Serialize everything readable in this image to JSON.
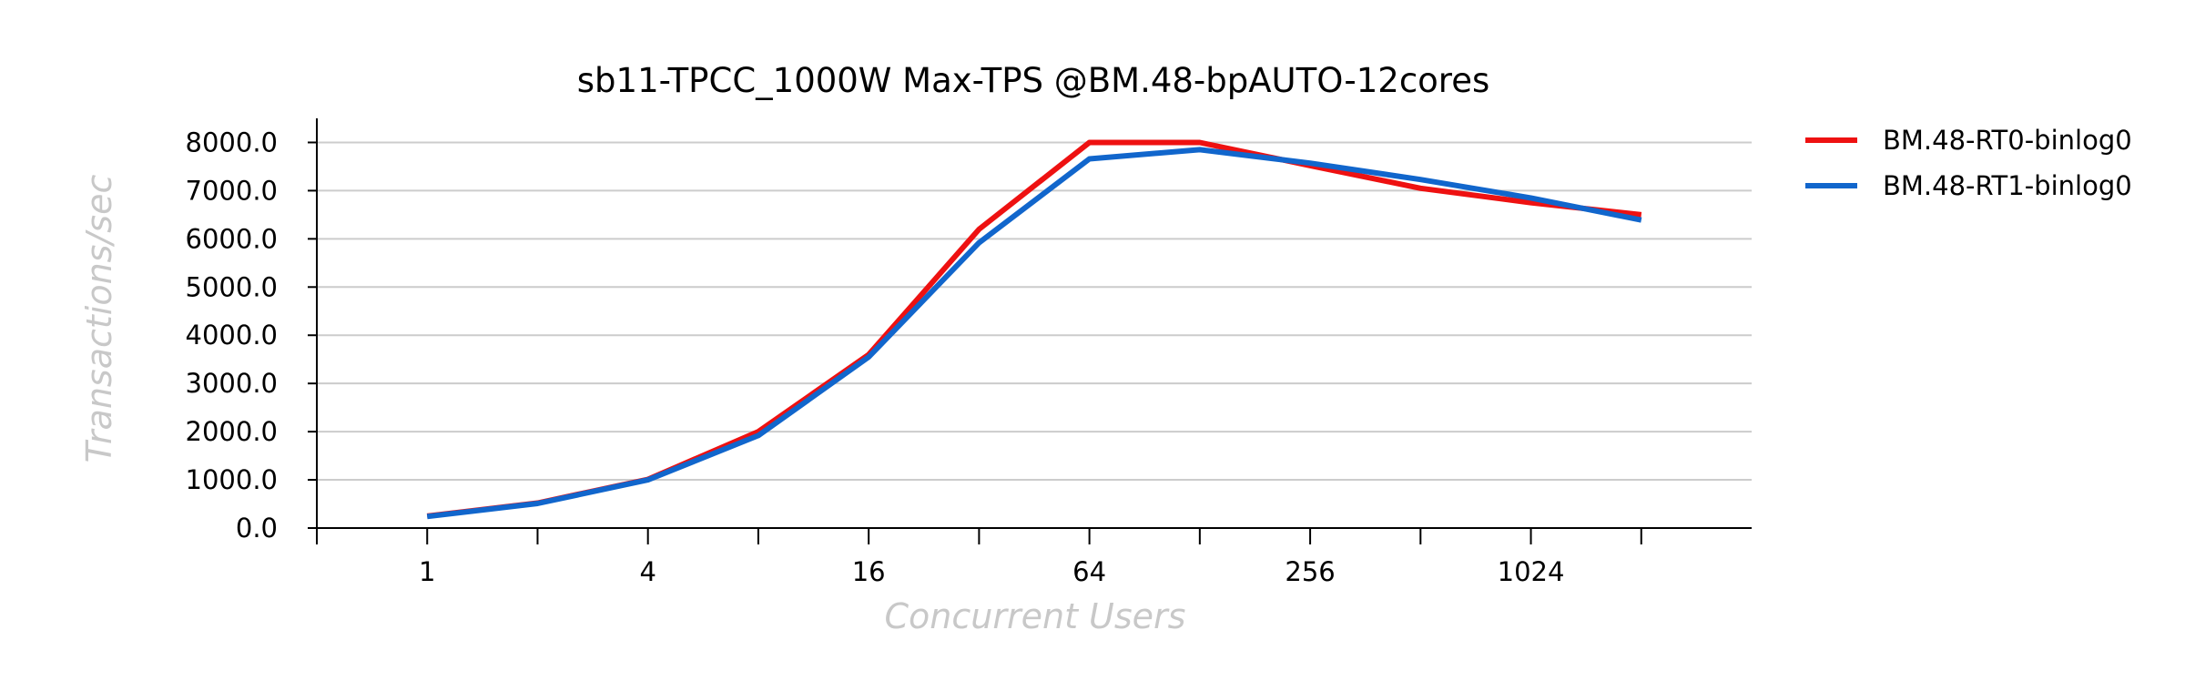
{
  "chart_data": {
    "type": "line",
    "title": "sb11-TPCC_1000W Max-TPS @BM.48-bpAUTO-12cores",
    "xlabel": "Concurrent Users",
    "ylabel": "Transactions/sec",
    "x_scale": "log2",
    "x": [
      1,
      2,
      4,
      8,
      16,
      32,
      64,
      128,
      256,
      512,
      1024,
      2048
    ],
    "xlim": [
      0.5,
      4096
    ],
    "x_ticks": [
      1,
      2,
      4,
      8,
      16,
      32,
      64,
      128,
      256,
      512,
      1024,
      2048
    ],
    "x_tick_labels": [
      "1",
      "",
      "4",
      "",
      "16",
      "",
      "64",
      "",
      "256",
      "",
      "1024",
      ""
    ],
    "ylim": [
      0,
      8500
    ],
    "y_ticks": [
      0,
      1000,
      2000,
      3000,
      4000,
      5000,
      6000,
      7000,
      8000
    ],
    "y_tick_labels": [
      "0.0",
      "1000.0",
      "2000.0",
      "3000.0",
      "4000.0",
      "5000.0",
      "6000.0",
      "7000.0",
      "8000.0"
    ],
    "grid": true,
    "legend_position": "right",
    "series": [
      {
        "name": "BM.48-RT0-binlog0",
        "color": "#ee1111",
        "values": [
          250,
          520,
          1010,
          2000,
          3600,
          6200,
          8000,
          8000,
          7520,
          7050,
          6750,
          6500
        ]
      },
      {
        "name": "BM.48-RT1-binlog0",
        "color": "#1166cc",
        "values": [
          240,
          510,
          1000,
          1920,
          3550,
          5920,
          7660,
          7850,
          7570,
          7230,
          6850,
          6390
        ]
      }
    ]
  }
}
